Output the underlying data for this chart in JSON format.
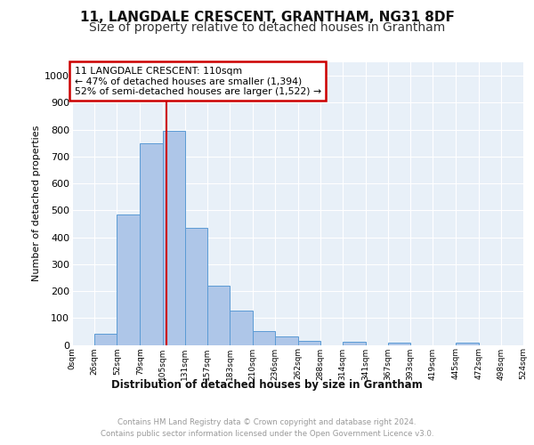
{
  "title1": "11, LANGDALE CRESCENT, GRANTHAM, NG31 8DF",
  "title2": "Size of property relative to detached houses in Grantham",
  "xlabel": "Distribution of detached houses by size in Grantham",
  "ylabel": "Number of detached properties",
  "bin_edges": [
    0,
    26,
    52,
    79,
    105,
    131,
    157,
    183,
    210,
    236,
    262,
    288,
    314,
    341,
    367,
    393,
    419,
    445,
    472,
    498,
    524
  ],
  "bar_heights": [
    0,
    40,
    485,
    750,
    795,
    435,
    220,
    128,
    50,
    30,
    14,
    0,
    10,
    0,
    8,
    0,
    0,
    8,
    0,
    0
  ],
  "bar_color": "#aec6e8",
  "bar_edge_color": "#5b9bd5",
  "tick_labels": [
    "0sqm",
    "26sqm",
    "52sqm",
    "79sqm",
    "105sqm",
    "131sqm",
    "157sqm",
    "183sqm",
    "210sqm",
    "236sqm",
    "262sqm",
    "288sqm",
    "314sqm",
    "341sqm",
    "367sqm",
    "393sqm",
    "419sqm",
    "445sqm",
    "472sqm",
    "498sqm",
    "524sqm"
  ],
  "property_line_x": 110,
  "property_line_color": "#cc0000",
  "annotation_box_color": "#cc0000",
  "annotation_lines": [
    "11 LANGDALE CRESCENT: 110sqm",
    "← 47% of detached houses are smaller (1,394)",
    "52% of semi-detached houses are larger (1,522) →"
  ],
  "ylim": [
    0,
    1050
  ],
  "yticks": [
    0,
    100,
    200,
    300,
    400,
    500,
    600,
    700,
    800,
    900,
    1000
  ],
  "plot_bg_color": "#e8f0f8",
  "grid_color": "#ffffff",
  "footer_text": "Contains HM Land Registry data © Crown copyright and database right 2024.\nContains public sector information licensed under the Open Government Licence v3.0.",
  "title1_fontsize": 11,
  "title2_fontsize": 10
}
